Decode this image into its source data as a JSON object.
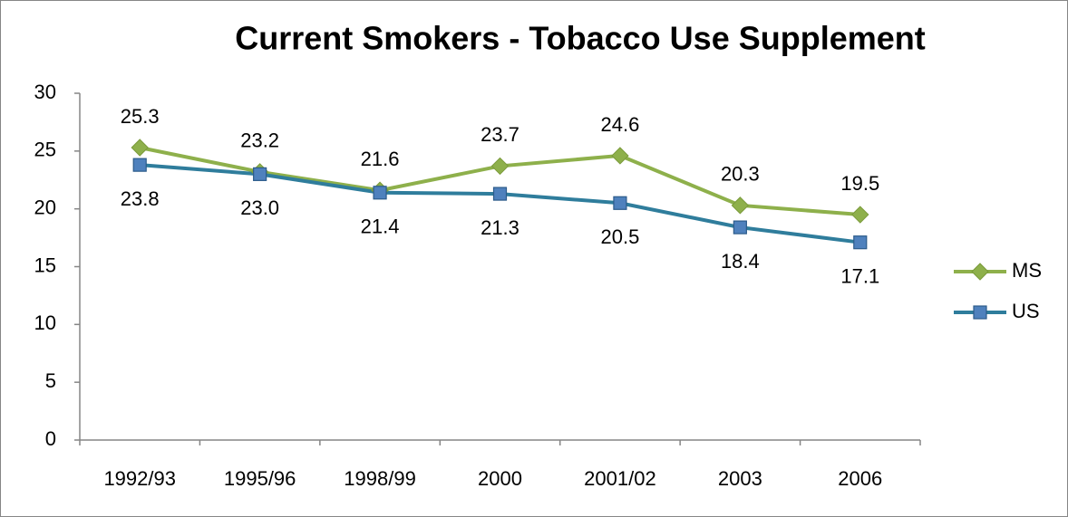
{
  "chart_data": {
    "type": "line",
    "title": "Current Smokers - Tobacco Use Supplement",
    "categories": [
      "1992/93",
      "1995/96",
      "1998/99",
      "2000",
      "2001/02",
      "2003",
      "2006"
    ],
    "series": [
      {
        "name": "MS",
        "color": "#8eb04b",
        "marker": "diamond",
        "values": [
          25.3,
          23.2,
          21.6,
          23.7,
          24.6,
          20.3,
          19.5
        ]
      },
      {
        "name": "US",
        "color": "#2f7d9c",
        "marker": "square",
        "values": [
          23.8,
          23,
          21.4,
          21.3,
          20.5,
          18.4,
          17.1
        ],
        "value_labels": [
          "23.8",
          "23.0",
          "21.4",
          "21.3",
          "20.5",
          "18.4",
          "17.1"
        ]
      }
    ],
    "ylim": [
      0,
      30
    ],
    "yticks": [
      0,
      5,
      10,
      15,
      20,
      25,
      30
    ],
    "grid": false,
    "legend": "right"
  }
}
